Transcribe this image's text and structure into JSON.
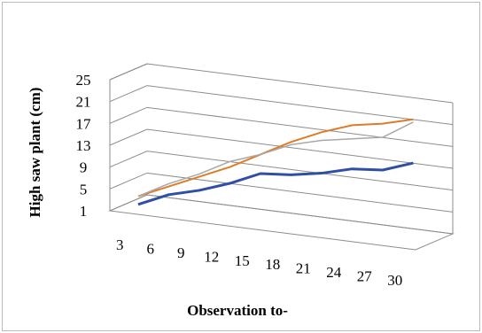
{
  "chart_data": {
    "type": "line",
    "style": "3d",
    "title": "",
    "xlabel": "Observation to-",
    "ylabel": "High saw plant (cm)",
    "categories": [
      "3",
      "6",
      "9",
      "12",
      "15",
      "18",
      "21",
      "24",
      "27",
      "30"
    ],
    "y_ticks": [
      "1",
      "5",
      "9",
      "13",
      "17",
      "21",
      "25"
    ],
    "ylim": [
      1,
      25
    ],
    "grid": true,
    "legend": "none",
    "series": [
      {
        "color": "#2E4FA3",
        "values": [
          1.5,
          4.0,
          5.5,
          7.5,
          10.0,
          10.5,
          11.5,
          13.0,
          13.5,
          15.5
        ]
      },
      {
        "color": "#E07B28",
        "values": [
          3.0,
          5.5,
          8.0,
          10.5,
          13.5,
          16.5,
          19.0,
          21.0,
          22.0,
          23.5
        ]
      },
      {
        "color": "#A8A8A8",
        "values": [
          3.0,
          6.0,
          8.5,
          11.5,
          13.5,
          16.0,
          17.5,
          18.5,
          19.5,
          23.0
        ]
      }
    ]
  }
}
